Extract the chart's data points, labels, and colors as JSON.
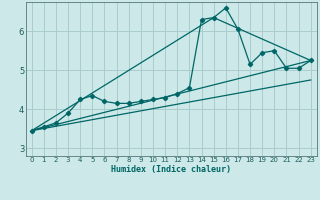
{
  "xlabel": "Humidex (Indice chaleur)",
  "ylabel": "",
  "background_color": "#cce8e8",
  "grid_color": "#aacccc",
  "line_color": "#006666",
  "xlim": [
    -0.5,
    23.5
  ],
  "ylim": [
    2.8,
    6.75
  ],
  "xticks": [
    0,
    1,
    2,
    3,
    4,
    5,
    6,
    7,
    8,
    9,
    10,
    11,
    12,
    13,
    14,
    15,
    16,
    17,
    18,
    19,
    20,
    21,
    22,
    23
  ],
  "yticks": [
    3,
    4,
    5,
    6
  ],
  "series1_x": [
    0,
    1,
    2,
    3,
    4,
    5,
    6,
    7,
    8,
    9,
    10,
    11,
    12,
    13,
    14,
    15,
    16,
    17,
    18,
    19,
    20,
    21,
    22,
    23
  ],
  "series1_y": [
    3.45,
    3.55,
    3.65,
    3.9,
    4.25,
    4.35,
    4.2,
    4.15,
    4.15,
    4.2,
    4.25,
    4.3,
    4.4,
    4.55,
    6.3,
    6.35,
    6.6,
    6.05,
    5.15,
    5.45,
    5.5,
    5.05,
    5.05,
    5.25
  ],
  "series2_x": [
    0,
    23
  ],
  "series2_y": [
    3.45,
    5.25
  ],
  "series3_x": [
    0,
    15,
    23
  ],
  "series3_y": [
    3.45,
    6.35,
    5.25
  ],
  "series4_x": [
    0,
    23
  ],
  "series4_y": [
    3.45,
    4.75
  ]
}
